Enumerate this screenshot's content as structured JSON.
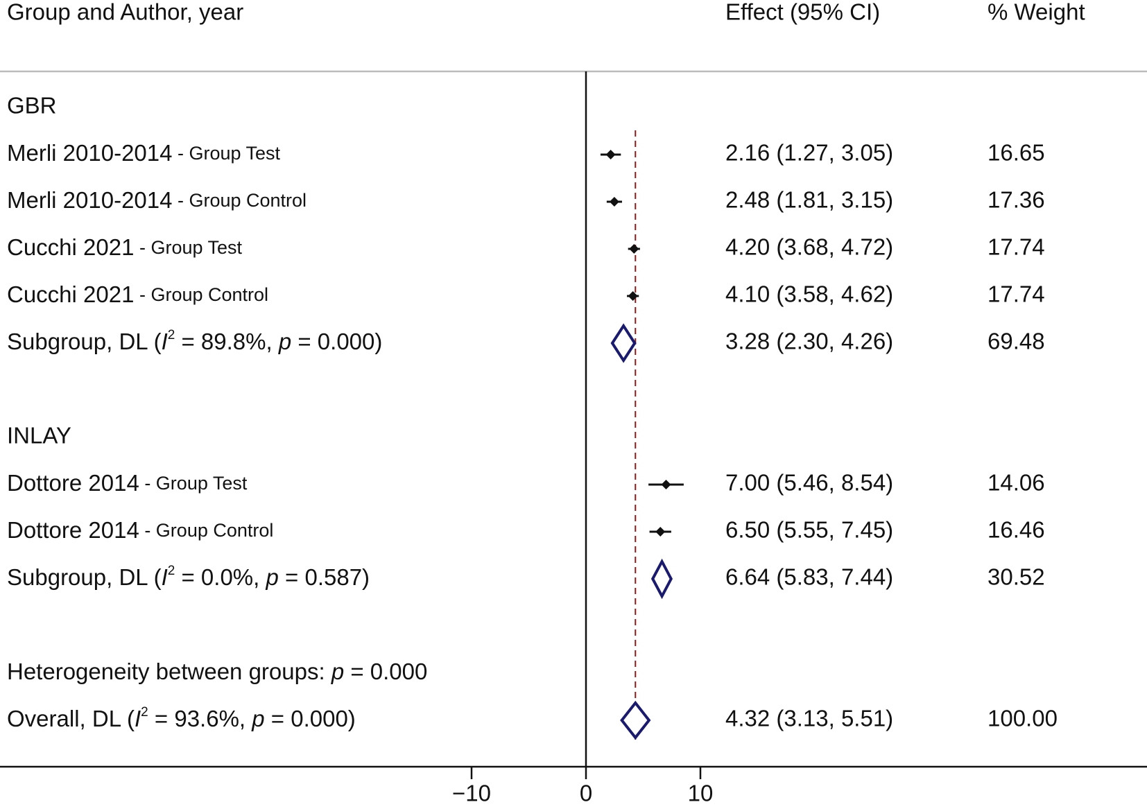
{
  "chart_data": {
    "type": "forest",
    "headers": {
      "study": "Group and Author, year",
      "effect": "Effect (95% CI)",
      "weight": "% Weight"
    },
    "colors": {
      "marker": "#111111",
      "diamond": "#1a1a6e",
      "overall_line": "#8b1a1a",
      "axis": "#111111",
      "header_rule": "#bbbbbb"
    },
    "x_axis": {
      "ticks": [
        -10,
        0,
        10
      ],
      "tick_labels": [
        "−10",
        "0",
        "10"
      ],
      "range": [
        -51.3,
        48.3
      ]
    },
    "overall_effect": 4.32,
    "rows": [
      {
        "kind": "group",
        "label": "GBR"
      },
      {
        "kind": "study",
        "main": "Merli 2010-2014",
        "sub": " - Group Test",
        "est": 2.16,
        "lo": 1.27,
        "hi": 3.05,
        "ci_text": "2.16 (1.27, 3.05)",
        "weight": "16.65"
      },
      {
        "kind": "study",
        "main": "Merli 2010-2014",
        "sub": " - Group Control",
        "est": 2.48,
        "lo": 1.81,
        "hi": 3.15,
        "ci_text": "2.48 (1.81, 3.15)",
        "weight": "17.36"
      },
      {
        "kind": "study",
        "main": "Cucchi 2021",
        "sub": " - Group Test",
        "est": 4.2,
        "lo": 3.68,
        "hi": 4.72,
        "ci_text": "4.20 (3.68, 4.72)",
        "weight": "17.74"
      },
      {
        "kind": "study",
        "main": "Cucchi 2021",
        "sub": " - Group Control",
        "est": 4.1,
        "lo": 3.58,
        "hi": 4.62,
        "ci_text": "4.10 (3.58, 4.62)",
        "weight": "17.74"
      },
      {
        "kind": "subgroup",
        "pre": "Subgroup, DL (",
        "i_letter": "I",
        "sup": "2",
        "mid": " = 89.8%, ",
        "p_letter": "p",
        "post": " = 0.000)",
        "est": 3.28,
        "lo": 2.3,
        "hi": 4.26,
        "ci_text": "3.28 (2.30, 4.26)",
        "weight": "69.48"
      },
      {
        "kind": "blank"
      },
      {
        "kind": "group",
        "label": "INLAY"
      },
      {
        "kind": "study",
        "main": "Dottore 2014",
        "sub": " - Group Test",
        "est": 7.0,
        "lo": 5.46,
        "hi": 8.54,
        "ci_text": "7.00 (5.46, 8.54)",
        "weight": "14.06"
      },
      {
        "kind": "study",
        "main": "Dottore 2014",
        "sub": " - Group Control",
        "est": 6.5,
        "lo": 5.55,
        "hi": 7.45,
        "ci_text": "6.50 (5.55, 7.45)",
        "weight": "16.46"
      },
      {
        "kind": "subgroup",
        "pre": "Subgroup, DL (",
        "i_letter": "I",
        "sup": "2",
        "mid": " = 0.0%, ",
        "p_letter": "p",
        "post": " = 0.587)",
        "est": 6.64,
        "lo": 5.83,
        "hi": 7.44,
        "ci_text": "6.64 (5.83, 7.44)",
        "weight": "30.52"
      },
      {
        "kind": "blank"
      },
      {
        "kind": "heterogeneity",
        "pre": "Heterogeneity between groups: ",
        "p_letter": "p",
        "post": " = 0.000"
      },
      {
        "kind": "overall",
        "pre": "Overall, DL (",
        "i_letter": "I",
        "sup": "2",
        "mid": " = 93.6%, ",
        "p_letter": "p",
        "post": " = 0.000)",
        "est": 4.32,
        "lo": 3.13,
        "hi": 5.51,
        "ci_text": "4.32 (3.13, 5.51)",
        "weight": "100.00"
      }
    ]
  }
}
